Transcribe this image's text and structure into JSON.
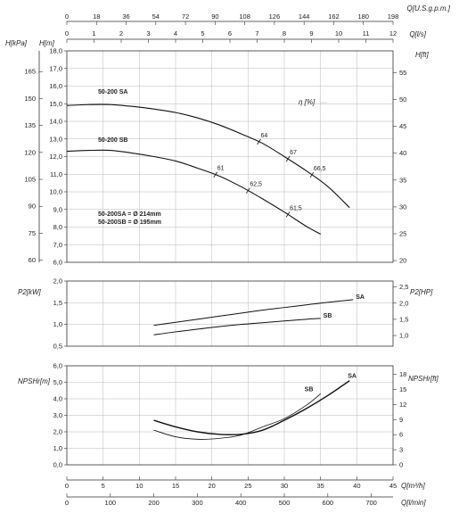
{
  "chart_data": {
    "type": "line",
    "top_axes": {
      "usgpm": {
        "label": "Q[U.S.g.p.m.]",
        "ticks": [
          "0",
          "18",
          "36",
          "54",
          "72",
          "90",
          "108",
          "126",
          "144",
          "162",
          "180",
          "198"
        ]
      },
      "ls": {
        "label": "Q[l/s]",
        "ticks": [
          "0",
          "1",
          "2",
          "3",
          "4",
          "5",
          "6",
          "7",
          "8",
          "9",
          "10",
          "11",
          "12"
        ]
      }
    },
    "bottom_axes": {
      "m3h": {
        "label": "Q[m³/h]",
        "ticks": [
          "0",
          "5",
          "10",
          "15",
          "20",
          "25",
          "30",
          "35",
          "40",
          "45"
        ]
      },
      "lmin": {
        "label": "Q[l/min]",
        "ticks": [
          "0",
          "100",
          "200",
          "300",
          "400",
          "500",
          "600",
          "700"
        ]
      }
    },
    "head_panel": {
      "ylabel_left_kpa": "H[kPa]",
      "ylabel_left_m": "H[m]",
      "ylabel_right": "H[ft]",
      "ticks_kpa": [
        "165",
        "150",
        "135",
        "120",
        "105",
        "90",
        "75",
        "60"
      ],
      "ticks_m": [
        "18,0",
        "17,0",
        "16,0",
        "15,0",
        "14,0",
        "13,0",
        "12,0",
        "11,0",
        "10,0",
        "9,0",
        "8,0",
        "7,0",
        "6,0"
      ],
      "ticks_ft": [
        "55",
        "50",
        "45",
        "40",
        "35",
        "30",
        "25",
        "20"
      ],
      "ylim": [
        6,
        18
      ],
      "efficiency_label": "η [%]",
      "series": [
        {
          "name": "50-200 SA",
          "x": [
            0,
            3,
            6,
            9,
            12,
            15,
            18,
            21,
            24,
            27,
            30,
            33,
            36,
            39
          ],
          "y": [
            14.9,
            14.95,
            14.95,
            14.85,
            14.7,
            14.5,
            14.2,
            13.8,
            13.3,
            12.75,
            12.0,
            11.2,
            10.3,
            9.1
          ]
        },
        {
          "name": "50-200 SB",
          "x": [
            0,
            3,
            6,
            9,
            12,
            15,
            18,
            21,
            24,
            27,
            30,
            33,
            35
          ],
          "y": [
            12.3,
            12.35,
            12.35,
            12.2,
            12.0,
            11.75,
            11.35,
            10.9,
            10.3,
            9.6,
            8.85,
            8.05,
            7.6
          ]
        }
      ],
      "efficiency_marks": [
        {
          "label": "64",
          "x": 26.5,
          "series": 0
        },
        {
          "label": "67",
          "x": 30.5,
          "series": 0
        },
        {
          "label": "66,5",
          "x": 33.8,
          "series": 0
        },
        {
          "label": "61",
          "x": 20.5,
          "series": 1
        },
        {
          "label": "62,5",
          "x": 25,
          "series": 1
        },
        {
          "label": "61,5",
          "x": 30.5,
          "series": 1
        }
      ],
      "impeller_notes": [
        "50-200SA = Ø 214mm",
        "50-200SB = Ø 195mm"
      ]
    },
    "power_panel": {
      "ylabel_left": "P2[kW]",
      "ylabel_right": "P2[HP]",
      "ticks_kw": [
        "2,0",
        "1,5",
        "1,0",
        "0,5"
      ],
      "ticks_hp": [
        "2,5",
        "2,0",
        "1,5",
        "1,0"
      ],
      "ylim": [
        0.5,
        2.0
      ],
      "series": [
        {
          "name": "SA",
          "x": [
            12,
            15,
            18,
            21,
            24,
            27,
            30,
            33,
            36,
            39.5
          ],
          "y": [
            0.98,
            1.05,
            1.12,
            1.19,
            1.26,
            1.33,
            1.39,
            1.45,
            1.51,
            1.57
          ]
        },
        {
          "name": "SB",
          "x": [
            12,
            15,
            18,
            21,
            24,
            27,
            30,
            33,
            35
          ],
          "y": [
            0.76,
            0.83,
            0.89,
            0.95,
            1.0,
            1.04,
            1.08,
            1.12,
            1.14
          ]
        }
      ]
    },
    "npsh_panel": {
      "ylabel_left": "NPSHr[m]",
      "ylabel_right": "NPSHr[ft]",
      "ticks_m": [
        "6,0",
        "5,0",
        "4,0",
        "3,0",
        "2,0",
        "1,0",
        "0,0"
      ],
      "ticks_ft": [
        "18",
        "15",
        "12",
        "9",
        "6",
        "3",
        "0"
      ],
      "ylim": [
        0,
        6
      ],
      "series": [
        {
          "name": "SA",
          "x": [
            12,
            15,
            18,
            21,
            24,
            27,
            30,
            33,
            36,
            39
          ],
          "y": [
            2.7,
            2.3,
            2.0,
            1.85,
            1.85,
            2.1,
            2.7,
            3.4,
            4.2,
            5.1
          ]
        },
        {
          "name": "SB",
          "x": [
            12,
            15,
            18,
            21,
            24,
            27,
            30,
            33,
            35
          ],
          "y": [
            2.1,
            1.7,
            1.55,
            1.6,
            1.8,
            2.3,
            2.8,
            3.6,
            4.3
          ]
        }
      ]
    }
  }
}
